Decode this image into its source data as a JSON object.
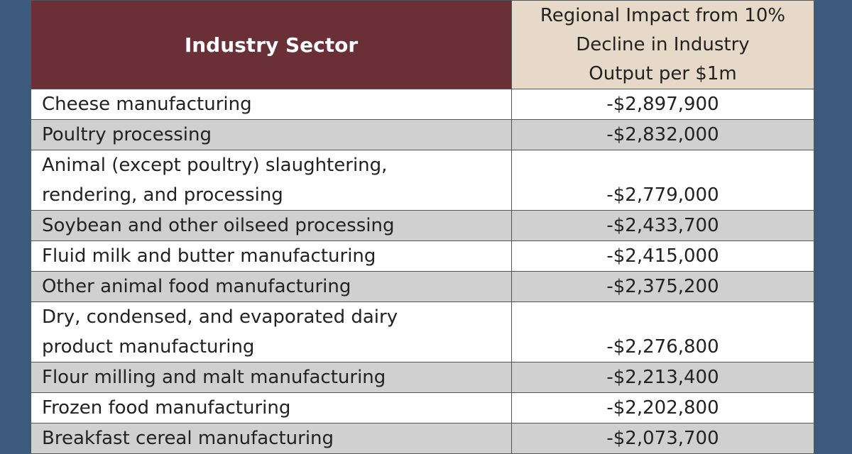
{
  "table": {
    "header": [
      "Industry Sector",
      [
        "Regional Impact from 10%",
        "Decline in Industry",
        "Output per $1m"
      ]
    ],
    "rows": [
      [
        "Cheese manufacturing",
        "-$2,897,900"
      ],
      [
        "Poultry processing",
        "-$2,832,000"
      ],
      [
        "Animal (except poultry) slaughtering, rendering, and processing",
        "-$2,779,000"
      ],
      [
        "Soybean and other oilseed processing",
        "-$2,433,700"
      ],
      [
        "Fluid milk and butter manufacturing",
        "-$2,415,000"
      ],
      [
        "Other animal food manufacturing",
        "-$2,375,200"
      ],
      [
        "Dry, condensed, and evaporated dairy product manufacturing",
        "-$2,276,800"
      ],
      [
        "Flour milling and malt manufacturing",
        "-$2,213,400"
      ],
      [
        "Frozen food manufacturing",
        "-$2,202,800"
      ],
      [
        "Breakfast cereal manufacturing",
        "-$2,073,700"
      ]
    ]
  }
}
